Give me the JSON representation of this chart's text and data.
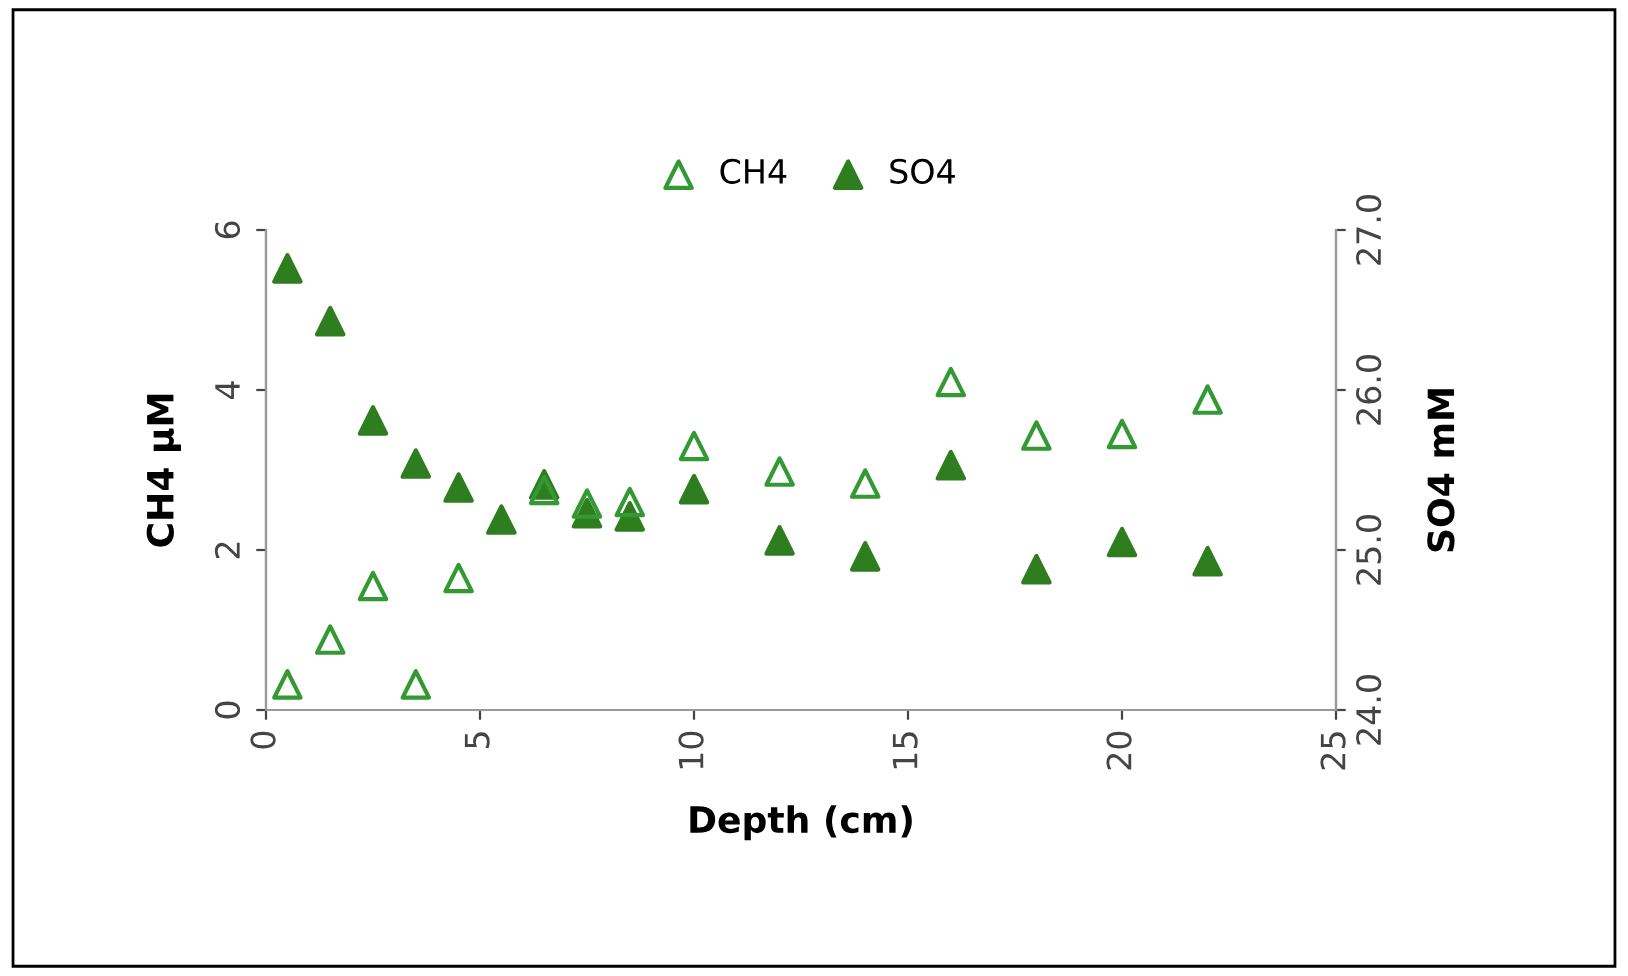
{
  "chart_data": {
    "type": "scatter",
    "xlabel": "Depth (cm)",
    "ylabel": "CH4 µM",
    "y2label": "SO4 mM",
    "xlim": [
      0,
      25
    ],
    "xticks": [
      0,
      5,
      10,
      15,
      20,
      25
    ],
    "ylim": [
      0,
      6
    ],
    "yticks": [
      0,
      2,
      4,
      6
    ],
    "y2lim": [
      24.0,
      27.0
    ],
    "y2ticks": [
      {
        "value": 24,
        "label": "24.0"
      },
      {
        "value": 25,
        "label": "25.0"
      },
      {
        "value": 26,
        "label": "26.0"
      },
      {
        "value": 27,
        "label": "27.0"
      }
    ],
    "legend": "top",
    "grid": false,
    "marker": "triangle",
    "series": [
      {
        "name": "CH4",
        "color": "#339933",
        "x": [
          0.5,
          1.5,
          2.5,
          3.5,
          4.5,
          6.5,
          7.5,
          8.5,
          10,
          12,
          14,
          16,
          18,
          20,
          22
        ],
        "values": [
          0.32,
          0.88,
          1.55,
          0.32,
          1.65,
          2.75,
          2.58,
          2.6,
          3.3,
          2.98,
          2.83,
          4.1,
          3.43,
          3.45,
          3.88
        ]
      },
      {
        "name": "SO4",
        "color": "#2e7d1e",
        "axis": "y2",
        "x": [
          0.5,
          1.5,
          2.5,
          3.5,
          4.5,
          5.5,
          6.5,
          7.5,
          8.5,
          10,
          12,
          14,
          16,
          18,
          20,
          22
        ],
        "values": [
          26.76,
          26.43,
          25.81,
          25.54,
          25.39,
          25.19,
          25.41,
          25.23,
          25.21,
          25.38,
          25.06,
          24.96,
          25.53,
          24.88,
          25.05,
          24.93
        ]
      }
    ]
  }
}
